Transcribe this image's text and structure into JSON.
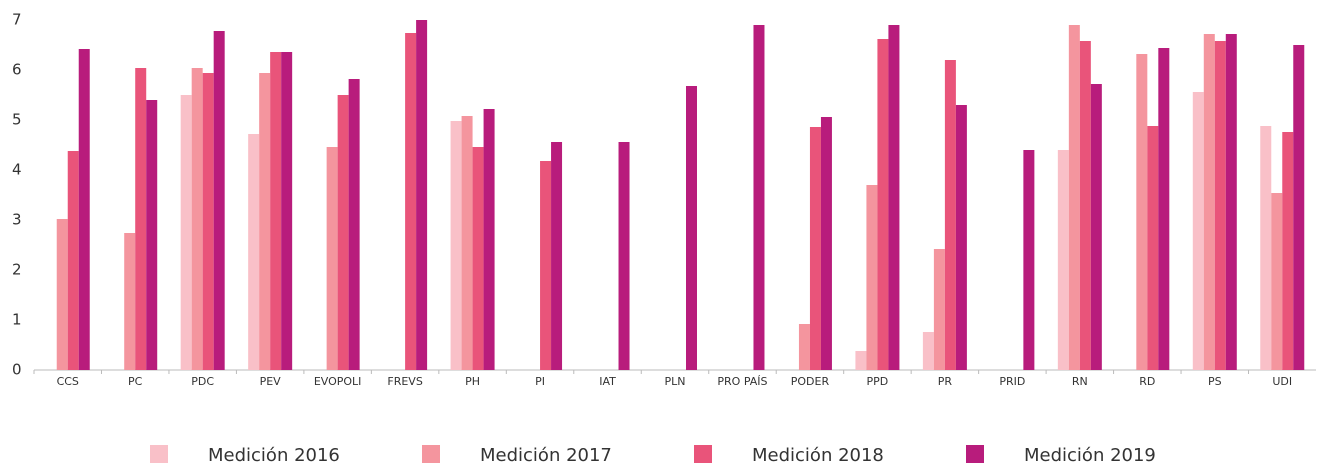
{
  "chart_data": {
    "type": "bar",
    "categories": [
      "CCS",
      "PC",
      "PDC",
      "PEV",
      "EVOPOLI",
      "FREVS",
      "PH",
      "PI",
      "IAT",
      "PLN",
      "PRO PAÍS",
      "PODER",
      "PPD",
      "PR",
      "PRID",
      "RN",
      "RD",
      "PS",
      "UDI"
    ],
    "series": [
      {
        "name": "Medición 2016",
        "color": "#f9c0c8",
        "values": [
          null,
          null,
          5.5,
          4.72,
          null,
          null,
          4.98,
          null,
          null,
          null,
          null,
          null,
          0.38,
          0.76,
          null,
          4.4,
          null,
          5.56,
          4.88
        ]
      },
      {
        "name": "Medición 2017",
        "color": "#f4959e",
        "values": [
          3.02,
          2.74,
          6.04,
          5.94,
          4.46,
          null,
          5.08,
          null,
          null,
          null,
          null,
          0.92,
          3.7,
          2.42,
          null,
          6.9,
          6.32,
          6.72,
          3.54
        ]
      },
      {
        "name": "Medición 2018",
        "color": "#e9547a",
        "values": [
          4.38,
          6.04,
          5.94,
          6.36,
          5.5,
          6.74,
          4.46,
          4.18,
          null,
          null,
          null,
          4.86,
          6.62,
          6.2,
          null,
          6.58,
          4.88,
          6.58,
          4.76
        ]
      },
      {
        "name": "Medición 2019",
        "color": "#b81c7c",
        "values": [
          6.42,
          5.4,
          6.78,
          6.36,
          5.82,
          7.0,
          5.22,
          4.56,
          4.56,
          5.68,
          6.9,
          5.06,
          6.9,
          5.3,
          4.4,
          5.72,
          6.44,
          6.72,
          6.5
        ]
      }
    ],
    "ylim": [
      0,
      7
    ],
    "yticks": [
      0,
      1,
      2,
      3,
      4,
      5,
      6,
      7
    ],
    "grid": false,
    "legend": "bottom"
  }
}
